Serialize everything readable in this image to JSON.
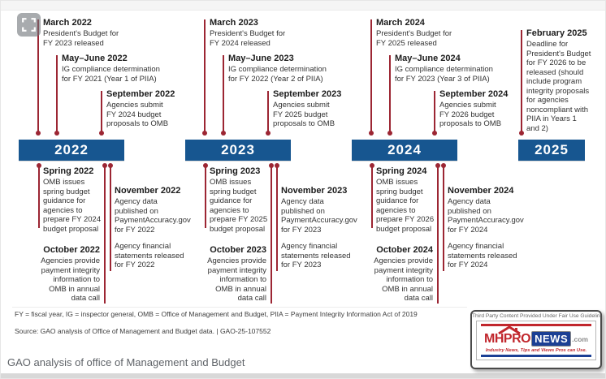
{
  "caption": "GAO analysis of office of Management and Budget",
  "colors": {
    "bar_blue": "#175690",
    "connector_red": "#9c2633",
    "brand_red": "#c1272d",
    "brand_blue": "#1b3f94"
  },
  "timeline": {
    "years": [
      {
        "label": "2022",
        "above": [
          {
            "title": "March 2022",
            "body": "President's Budget for\nFY 2023 released"
          },
          {
            "title": "May–June 2022",
            "body": "IG compliance determination\nfor FY 2021 (Year 1 of PIIA)"
          },
          {
            "title": "September 2022",
            "body": "Agencies submit\nFY 2024 budget\nproposals to OMB"
          }
        ],
        "below": {
          "spring": {
            "title": "Spring 2022",
            "body": "OMB issues\nspring budget\nguidance for\nagencies to\nprepare FY 2024\nbudget proposal"
          },
          "november": {
            "title": "November 2022",
            "body": "Agency data\npublished on\nPaymentAccuracy.gov\nfor FY 2022",
            "body2": "Agency financial\nstatements released\nfor FY 2022"
          },
          "october": {
            "title": "October 2022",
            "body": "Agencies provide\npayment integrity\ninformation to\nOMB in annual\ndata call"
          }
        }
      },
      {
        "label": "2023",
        "above": [
          {
            "title": "March 2023",
            "body": "President's Budget for\nFY 2024 released"
          },
          {
            "title": "May–June 2023",
            "body": "IG compliance determination\nfor FY 2022 (Year 2 of PIIA)"
          },
          {
            "title": "September 2023",
            "body": "Agencies submit\nFY 2025 budget\nproposals to OMB"
          }
        ],
        "below": {
          "spring": {
            "title": "Spring 2023",
            "body": "OMB issues\nspring budget\nguidance for\nagencies to\nprepare FY 2025\nbudget proposal"
          },
          "november": {
            "title": "November 2023",
            "body": "Agency data\npublished on\nPaymentAccuracy.gov\nfor FY 2023",
            "body2": "Agency financial\nstatements released\nfor FY 2023"
          },
          "october": {
            "title": "October 2023",
            "body": "Agencies provide\npayment integrity\ninformation to\nOMB in annual\ndata call"
          }
        }
      },
      {
        "label": "2024",
        "above": [
          {
            "title": "March 2024",
            "body": "President's Budget for\nFY 2025 released"
          },
          {
            "title": "May–June 2024",
            "body": "IG compliance determination\nfor FY 2023 (Year 3 of PIIA)"
          },
          {
            "title": "September 2024",
            "body": "Agencies submit\nFY 2026 budget\nproposals to OMB"
          }
        ],
        "below": {
          "spring": {
            "title": "Spring 2024",
            "body": "OMB issues\nspring budget\nguidance for\nagencies to\nprepare FY 2026\nbudget proposal"
          },
          "november": {
            "title": "November 2024",
            "body": "Agency data\npublished on\nPaymentAccuracy.gov\nfor FY 2024",
            "body2": "Agency financial\nstatements released\nfor FY 2024"
          },
          "october": {
            "title": "October 2024",
            "body": "Agencies provide\npayment integrity\ninformation to\nOMB in annual\ndata call"
          }
        }
      },
      {
        "label": "2025",
        "above": [
          {
            "title": "February 2025",
            "body": "Deadline for\nPresident's Budget\nfor FY 2026 to be\nreleased (should\ninclude program\nintegrity proposals\nfor agencies\nnoncompliant with\nPIIA in Years 1\nand 2)"
          }
        ],
        "below": null
      }
    ]
  },
  "footer": {
    "abbreviations": "FY = fiscal year, IG = inspector general, OMB = Office of Management and Budget, PIIA = Payment Integrity Information Act of 2019",
    "source": "Source: GAO analysis of Office of Management and Budget data.  |  GAO-25-107552"
  },
  "attribution": {
    "header": "Third Party Content Provided Under Fair Use Guidelines.",
    "brand_prefix": "MHPRO",
    "brand_suffix": "NEWS",
    "brand_tld": ".com",
    "tagline": "Industry News, Tips and Views Pros can Use."
  }
}
